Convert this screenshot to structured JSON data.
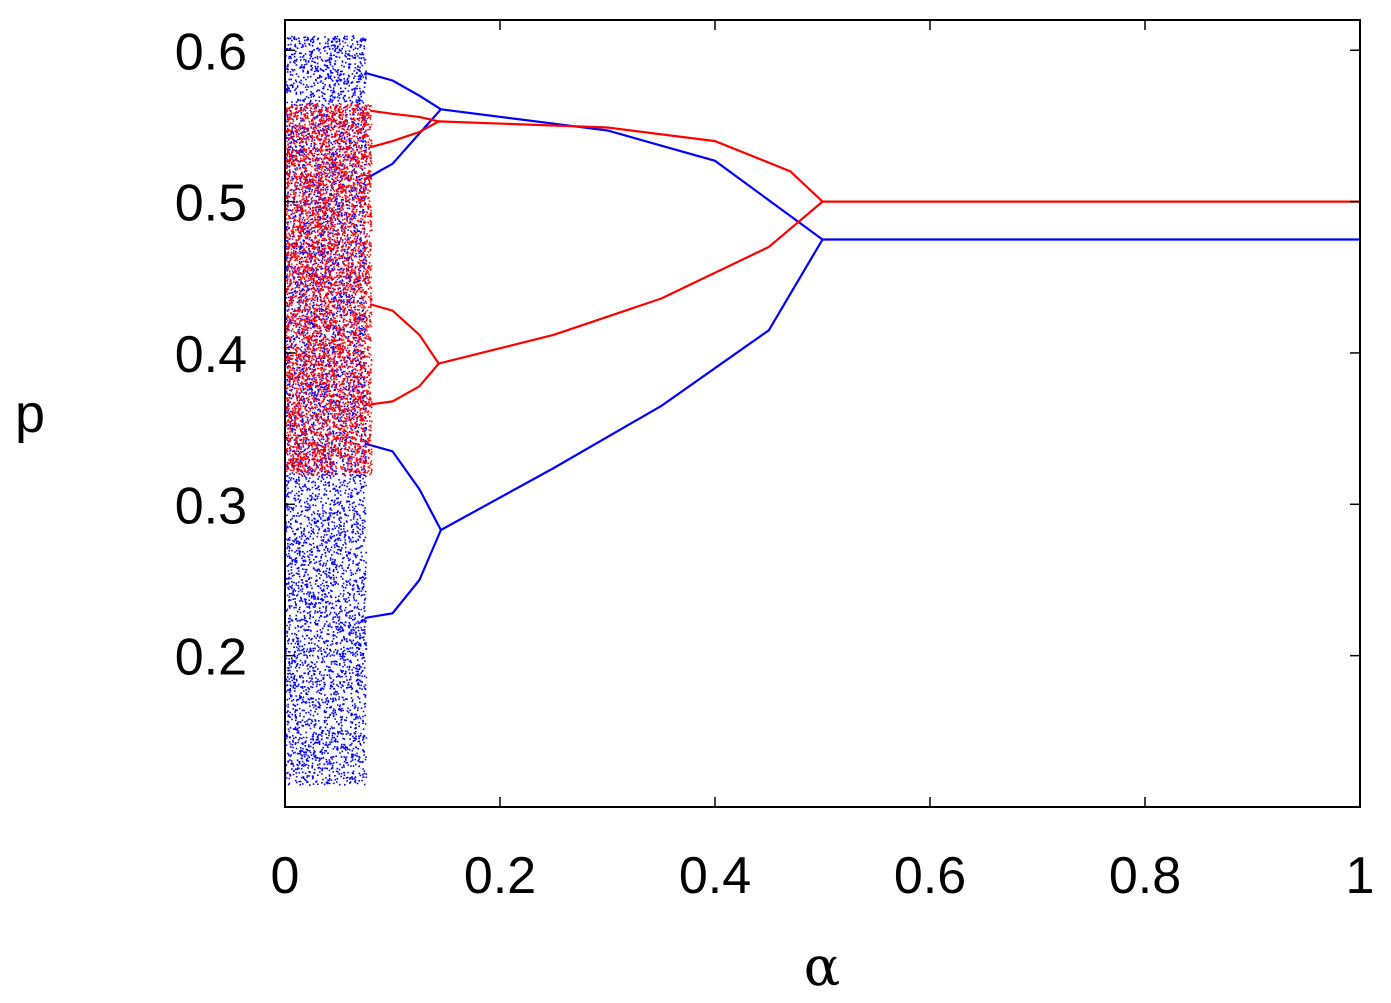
{
  "chart_data": {
    "type": "scatter",
    "title": "",
    "xlabel": "α",
    "ylabel": "p",
    "xlim": [
      0,
      1
    ],
    "ylim": [
      0.1,
      0.62
    ],
    "xticks": [
      0,
      0.2,
      0.4,
      0.6,
      0.8,
      1
    ],
    "xtick_labels": [
      "0",
      "0.2",
      "0.4",
      "0.6",
      "0.8",
      "1"
    ],
    "yticks": [
      0.2,
      0.3,
      0.4,
      0.5,
      0.6
    ],
    "ytick_labels": [
      "0.2",
      "0.3",
      "0.4",
      "0.5",
      "0.6"
    ],
    "grid": false,
    "legend": "none",
    "series": [
      {
        "color": "#0000ff",
        "chaotic_band": {
          "x": [
            0,
            0.075
          ],
          "y": [
            0.115,
            0.61
          ]
        },
        "branches": [
          {
            "x": [
              0.5,
              1.0
            ],
            "y": [
              0.475,
              0.475
            ]
          },
          {
            "x": [
              0.145,
              0.3,
              0.4,
              0.5
            ],
            "y": [
              0.561,
              0.547,
              0.527,
              0.475
            ]
          },
          {
            "x": [
              0.145,
              0.25,
              0.35,
              0.45,
              0.5
            ],
            "y": [
              0.283,
              0.324,
              0.365,
              0.415,
              0.475
            ]
          },
          {
            "x": [
              0.075,
              0.1,
              0.125,
              0.145
            ],
            "y": [
              0.585,
              0.58,
              0.57,
              0.561
            ]
          },
          {
            "x": [
              0.075,
              0.1,
              0.125,
              0.145
            ],
            "y": [
              0.515,
              0.525,
              0.545,
              0.561
            ]
          },
          {
            "x": [
              0.075,
              0.1,
              0.125,
              0.145
            ],
            "y": [
              0.34,
              0.335,
              0.31,
              0.283
            ]
          },
          {
            "x": [
              0.075,
              0.1,
              0.125,
              0.145
            ],
            "y": [
              0.225,
              0.228,
              0.25,
              0.283
            ]
          }
        ]
      },
      {
        "color": "#ff0000",
        "chaotic_band": {
          "x": [
            0,
            0.08
          ],
          "y": [
            0.32,
            0.565
          ]
        },
        "branches": [
          {
            "x": [
              0.5,
              1.0
            ],
            "y": [
              0.5,
              0.5
            ]
          },
          {
            "x": [
              0.143,
              0.3,
              0.4,
              0.47,
              0.5
            ],
            "y": [
              0.553,
              0.549,
              0.54,
              0.52,
              0.5
            ]
          },
          {
            "x": [
              0.143,
              0.25,
              0.35,
              0.45,
              0.5
            ],
            "y": [
              0.393,
              0.412,
              0.436,
              0.47,
              0.5
            ]
          },
          {
            "x": [
              0.08,
              0.1,
              0.125,
              0.143
            ],
            "y": [
              0.56,
              0.558,
              0.556,
              0.553
            ]
          },
          {
            "x": [
              0.08,
              0.1,
              0.125,
              0.143
            ],
            "y": [
              0.536,
              0.54,
              0.546,
              0.553
            ]
          },
          {
            "x": [
              0.08,
              0.1,
              0.125,
              0.143
            ],
            "y": [
              0.432,
              0.428,
              0.412,
              0.393
            ]
          },
          {
            "x": [
              0.08,
              0.1,
              0.125,
              0.143
            ],
            "y": [
              0.366,
              0.368,
              0.378,
              0.393
            ]
          }
        ]
      }
    ]
  }
}
